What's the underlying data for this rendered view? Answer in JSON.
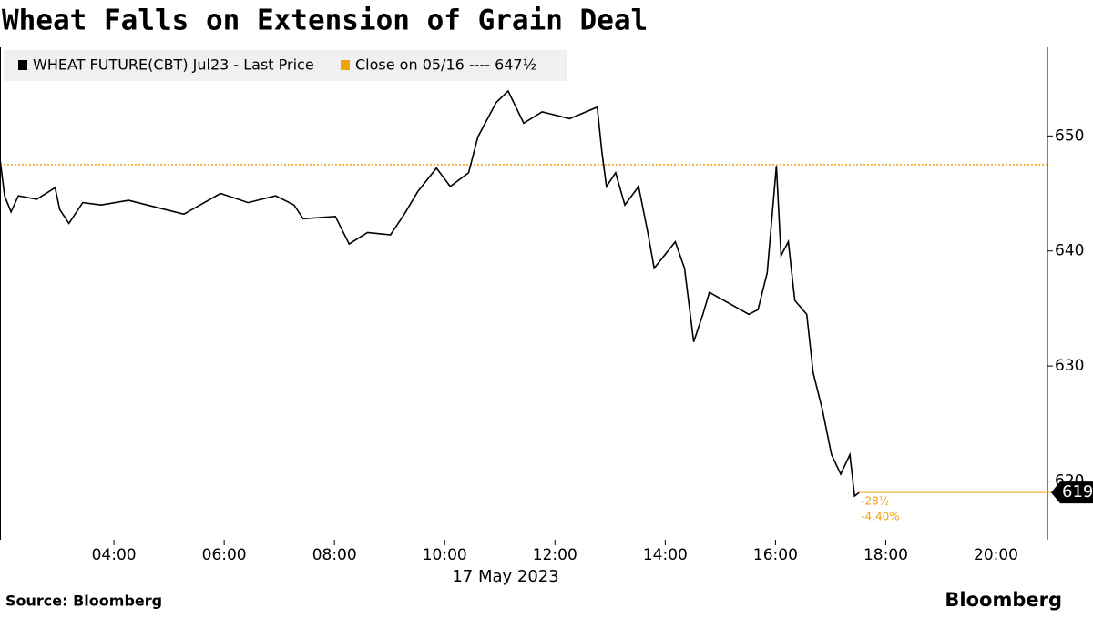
{
  "chart_data": {
    "type": "line",
    "title": "Wheat Falls on Extension of Grain Deal",
    "x_label": "17 May 2023",
    "source": "Source: Bloomberg",
    "brand": "Bloomberg",
    "x": [
      "01:56",
      "02:01",
      "02:08",
      "02:16",
      "02:36",
      "02:56",
      "03:01",
      "03:11",
      "03:26",
      "03:46",
      "04:16",
      "04:46",
      "05:16",
      "05:56",
      "06:26",
      "06:56",
      "07:16",
      "07:26",
      "08:01",
      "08:16",
      "08:36",
      "09:01",
      "09:16",
      "09:31",
      "09:51",
      "10:06",
      "10:26",
      "10:36",
      "10:56",
      "11:09",
      "11:26",
      "11:46",
      "12:16",
      "12:46",
      "12:51",
      "12:56",
      "13:06",
      "13:16",
      "13:31",
      "13:41",
      "13:48",
      "14:11",
      "14:21",
      "14:31",
      "14:41",
      "14:48",
      "15:31",
      "15:41",
      "15:51",
      "16:01",
      "16:06",
      "16:14",
      "16:21",
      "16:34",
      "16:41",
      "16:51",
      "17:01",
      "17:11",
      "17:21",
      "17:26",
      "17:31"
    ],
    "series": [
      {
        "name": "WHEAT FUTURE(CBT) Jul23 - Last Price",
        "color": "#000000",
        "values": [
          648,
          644.8,
          643.4,
          644.8,
          644.5,
          645.5,
          643.6,
          642.4,
          644.2,
          644,
          644.4,
          643.8,
          643.2,
          645,
          644.2,
          644.8,
          644,
          642.8,
          643,
          640.6,
          641.6,
          641.4,
          643.2,
          645.2,
          647.2,
          645.6,
          646.8,
          649.9,
          652.9,
          653.9,
          651.1,
          652.1,
          651.5,
          652.5,
          648.7,
          645.6,
          646.8,
          644,
          645.6,
          641.6,
          638.5,
          640.8,
          638.5,
          632.1,
          634.5,
          636.4,
          634.5,
          634.9,
          638.1,
          647.4,
          639.6,
          640.8,
          635.7,
          634.5,
          629.4,
          626.2,
          622.3,
          620.6,
          622.3,
          618.7,
          619
        ]
      }
    ],
    "reference_line": {
      "name": "Close on 05/16 ---- 647½",
      "value": 647.5,
      "color": "#f0a30a"
    },
    "last_price": 619,
    "change_label": "-28½",
    "change_pct_label": "-4.40%",
    "xlim": [
      "01:56",
      "20:56"
    ],
    "xticks": [
      "04:00",
      "06:00",
      "08:00",
      "10:00",
      "12:00",
      "14:00",
      "16:00",
      "18:00",
      "20:00"
    ],
    "ylim": [
      614.9,
      657.7
    ],
    "yticks": [
      620,
      630,
      640,
      650
    ]
  }
}
